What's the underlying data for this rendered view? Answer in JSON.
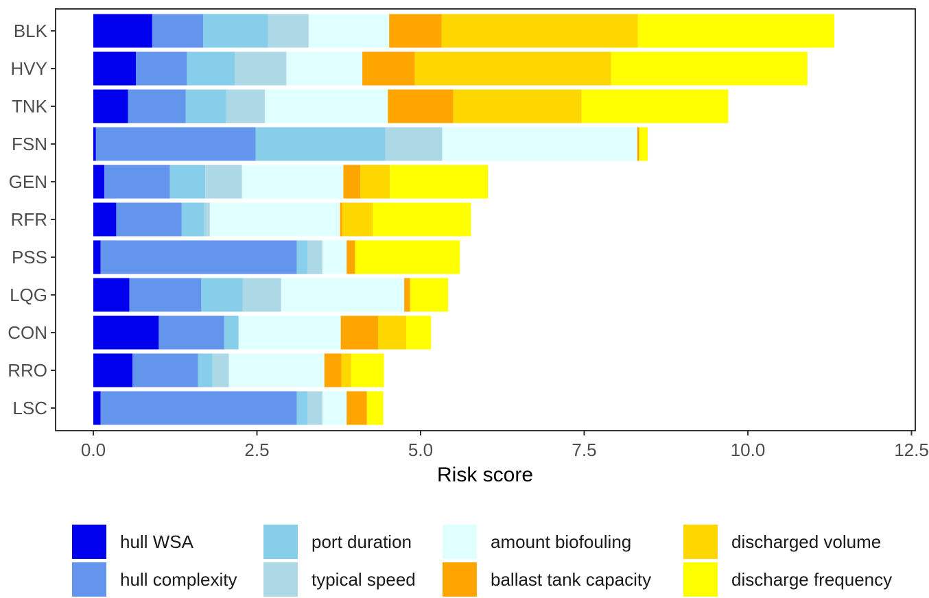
{
  "chart_data": {
    "type": "bar",
    "orientation": "horizontal",
    "stacked": true,
    "title": "",
    "xlabel": "Risk score",
    "ylabel": "",
    "xlim": [
      -0.3,
      12.5
    ],
    "xticks": [
      0.0,
      2.5,
      5.0,
      7.5,
      10.0,
      12.5
    ],
    "xtick_labels": [
      "0.0",
      "2.5",
      "5.0",
      "7.5",
      "10.0",
      "12.5"
    ],
    "grid": false,
    "legend_position": "bottom",
    "categories": [
      "BLK",
      "HVY",
      "TNK",
      "FSN",
      "GEN",
      "RFR",
      "PSS",
      "LQG",
      "CON",
      "RRO",
      "LSC"
    ],
    "series": [
      {
        "name": "hull WSA",
        "color": "#0000EE",
        "values": [
          0.9,
          0.65,
          0.53,
          0.04,
          0.17,
          0.35,
          0.11,
          0.55,
          1.0,
          0.6,
          0.11
        ]
      },
      {
        "name": "hull complexity",
        "color": "#6495ED",
        "values": [
          0.78,
          0.78,
          0.88,
          2.44,
          1.0,
          1.0,
          3.0,
          1.1,
          1.0,
          1.0,
          3.0
        ]
      },
      {
        "name": "port duration",
        "color": "#87CEEB",
        "values": [
          0.99,
          0.73,
          0.62,
          1.98,
          0.54,
          0.35,
          0.16,
          0.63,
          0.22,
          0.22,
          0.16
        ]
      },
      {
        "name": "typical speed",
        "color": "#ADD8E6",
        "values": [
          0.62,
          0.79,
          0.59,
          0.87,
          0.56,
          0.08,
          0.23,
          0.59,
          0.0,
          0.25,
          0.23
        ]
      },
      {
        "name": "amount biofouling",
        "color": "#E0FFFF",
        "values": [
          1.23,
          1.16,
          1.88,
          2.98,
          1.55,
          1.99,
          0.37,
          1.88,
          1.56,
          1.46,
          0.37
        ]
      },
      {
        "name": "ballast tank capacity",
        "color": "#FFA500",
        "values": [
          0.8,
          0.8,
          1.0,
          0.03,
          0.26,
          0.03,
          0.13,
          0.09,
          0.57,
          0.26,
          0.31
        ]
      },
      {
        "name": "discharged volume",
        "color": "#FFD700",
        "values": [
          3.0,
          3.0,
          1.96,
          0.0,
          0.45,
          0.47,
          0.0,
          0.0,
          0.43,
          0.15,
          0.0
        ]
      },
      {
        "name": "discharge frequency",
        "color": "#FFFF00",
        "values": [
          3.0,
          3.0,
          2.24,
          0.13,
          1.5,
          1.5,
          1.6,
          0.58,
          0.38,
          0.5,
          0.25
        ]
      }
    ]
  }
}
